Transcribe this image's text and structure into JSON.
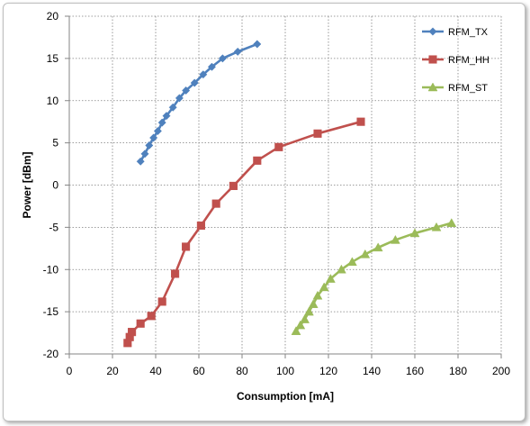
{
  "chart_data": {
    "type": "line",
    "xlabel": "Consumption [mA]",
    "ylabel": "Power [dBm]",
    "xlim": [
      0,
      200
    ],
    "ylim": [
      -20,
      20
    ],
    "x_ticks": [
      0,
      20,
      40,
      60,
      80,
      100,
      120,
      140,
      160,
      180,
      200
    ],
    "y_ticks": [
      -20,
      -15,
      -10,
      -5,
      0,
      5,
      10,
      15,
      20
    ],
    "grid": "dotted",
    "legend_position": "top-right",
    "series": [
      {
        "name": "RFM_TX",
        "color": "#4f81bd",
        "marker": "diamond",
        "x": [
          33,
          35,
          37,
          39,
          41,
          43,
          45,
          48,
          51,
          54,
          58,
          62,
          66,
          71,
          78,
          87
        ],
        "y": [
          2.8,
          3.7,
          4.7,
          5.6,
          6.4,
          7.4,
          8.2,
          9.2,
          10.3,
          11.2,
          12.1,
          13.1,
          14.0,
          15.0,
          15.8,
          16.7
        ]
      },
      {
        "name": "RFM_HH",
        "color": "#c0504d",
        "marker": "square",
        "x": [
          27,
          28,
          29,
          33,
          38,
          43,
          49,
          54,
          61,
          68,
          76,
          87,
          97,
          115,
          135
        ],
        "y": [
          -18.7,
          -18.0,
          -17.4,
          -16.4,
          -15.5,
          -13.8,
          -10.5,
          -7.3,
          -4.8,
          -2.2,
          -0.1,
          2.9,
          4.5,
          6.1,
          7.5
        ]
      },
      {
        "name": "RFM_ST",
        "color": "#9bbb59",
        "marker": "triangle",
        "x": [
          105,
          107,
          109,
          111,
          113,
          115,
          118,
          121,
          126,
          131,
          137,
          143,
          151,
          160,
          170,
          177
        ],
        "y": [
          -17.3,
          -16.6,
          -15.9,
          -15.0,
          -14.1,
          -13.1,
          -12.1,
          -11.1,
          -10.0,
          -9.1,
          -8.2,
          -7.4,
          -6.5,
          -5.7,
          -5.0,
          -4.5
        ]
      }
    ]
  }
}
